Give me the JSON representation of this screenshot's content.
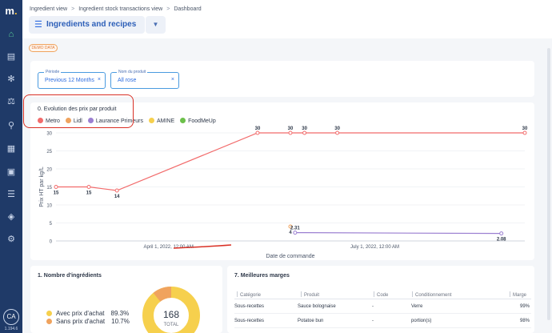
{
  "sidebar": {
    "logo": "m",
    "logo_dot": ".",
    "icons": [
      "home-icon",
      "box-icon",
      "carrot-icon",
      "utensils-icon",
      "cart-icon",
      "calendar-icon",
      "wallet-icon",
      "barcode-icon",
      "cubes-icon",
      "gear-icon"
    ],
    "avatar": "CA",
    "version": "1.194.6"
  },
  "breadcrumb": [
    "Ingredient view",
    "Ingredient stock transactions view",
    "Dashboard"
  ],
  "breadcrumb_sep": ">",
  "page": {
    "title": "Ingredients and recipes"
  },
  "demo_badge": "DEMO DATA",
  "filters": [
    {
      "label": "Période",
      "value": "Previous 12 Months",
      "clear": "×"
    },
    {
      "label": "Nom du produit",
      "value": "All rose",
      "clear": "×"
    }
  ],
  "chart_card_title": "0. Evolution des prix par produit",
  "chart_data": {
    "type": "line",
    "title": "0. Evolution des prix par produit",
    "xlabel": "Date de commande",
    "ylabel": "Prix HT par kg/L",
    "ylim": [
      0,
      30
    ],
    "yticks": [
      0,
      5,
      10,
      15,
      20,
      25,
      30
    ],
    "xtick_labels": [
      "April 1, 2022, 12:00 AM",
      "July 1, 2022, 12:00 AM"
    ],
    "grid": true,
    "legend_placement": "top-left",
    "series": [
      {
        "name": "Metro",
        "color": "#f26b6b",
        "points": [
          [
            0,
            15
          ],
          [
            0.07,
            15
          ],
          [
            0.13,
            14
          ],
          [
            0.43,
            30
          ],
          [
            0.5,
            30
          ],
          [
            0.53,
            30
          ],
          [
            0.6,
            30
          ],
          [
            1.0,
            30
          ]
        ],
        "labels": [
          "15",
          "15",
          "14",
          "30",
          "30",
          "30",
          "30",
          "30"
        ]
      },
      {
        "name": "Lidl",
        "color": "#f0a35e",
        "points": [
          [
            0.5,
            4
          ]
        ],
        "labels": [
          "4"
        ]
      },
      {
        "name": "Laurance Primeurs",
        "color": "#9b7fd1",
        "points": [
          [
            0.51,
            2.31
          ],
          [
            0.95,
            2.08
          ]
        ],
        "labels": [
          "2.31",
          "2.08"
        ]
      },
      {
        "name": "AMINE",
        "color": "#f6d04d",
        "points": [],
        "labels": []
      },
      {
        "name": "FoodMeUp",
        "color": "#6cc04a",
        "points": [],
        "labels": []
      }
    ]
  },
  "ingredients_card": {
    "title": "1. Nombre d'ingrédients",
    "rows": [
      {
        "label": "Avec prix d'achat",
        "pct": "89.3%",
        "color": "#f6d04d"
      },
      {
        "label": "Sans prix d'achat",
        "pct": "10.7%",
        "color": "#f0a35e"
      }
    ],
    "donut_total": "168",
    "donut_caption": "TOTAL",
    "donut_share": 0.893
  },
  "margins_card": {
    "title": "7. Meilleures marges",
    "columns": [
      "Catégorie",
      "Produit",
      "Code",
      "Conditionnement",
      "Marge"
    ],
    "rows": [
      [
        "Sous-recettes",
        "Sauce bolognaise",
        "-",
        "Verre",
        "99%"
      ],
      [
        "Sous-recettes",
        "Potatoe bun",
        "-",
        "portion(s)",
        "98%"
      ]
    ]
  }
}
